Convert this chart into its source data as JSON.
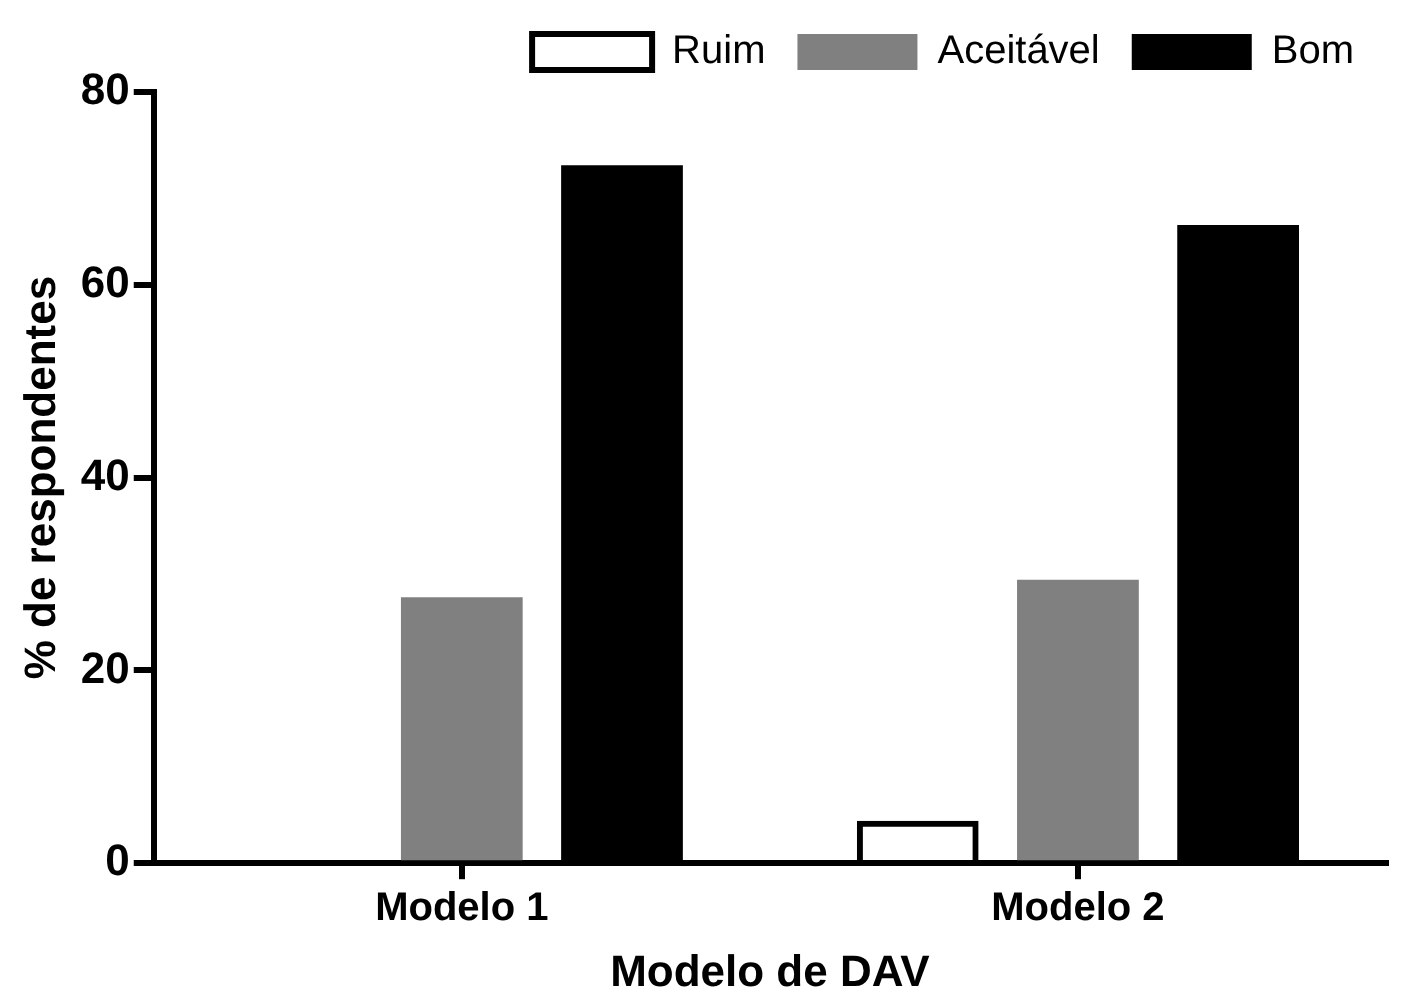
{
  "chart_data": {
    "type": "bar",
    "xlabel": "Modelo de DAV",
    "ylabel": "% de respondentes",
    "categories": [
      "Modelo 1",
      "Modelo 2"
    ],
    "series": [
      {
        "name": "Ruim",
        "color": "#000000",
        "values": [
          0,
          4.4
        ]
      },
      {
        "name": "Aceitável",
        "color": "#808080",
        "values": [
          27.6,
          29.4
        ]
      },
      {
        "name": "Bom",
        "color": "#000000",
        "values": [
          72.4,
          66.2
        ]
      }
    ],
    "ylim": [
      0,
      80
    ],
    "yticks": [
      0,
      20,
      40,
      60,
      80
    ],
    "grid": false,
    "legend": "top right"
  }
}
